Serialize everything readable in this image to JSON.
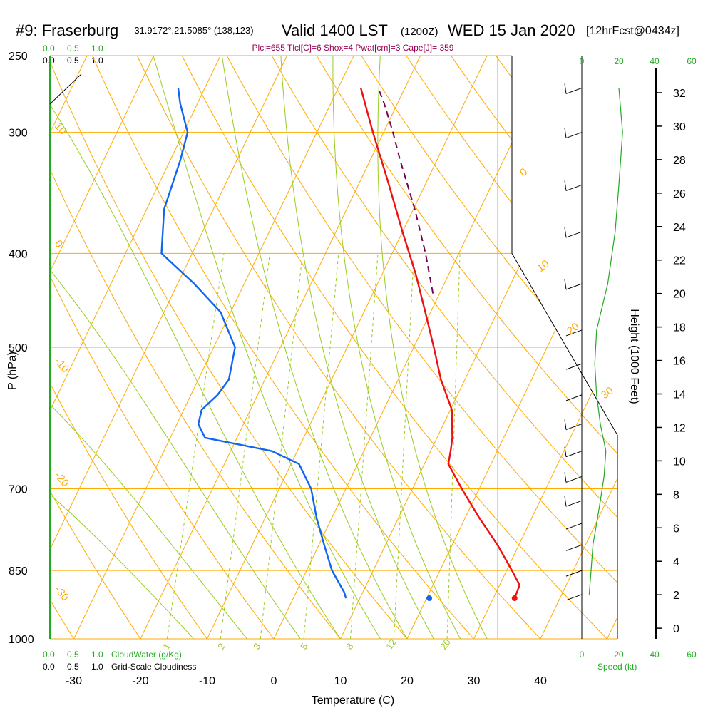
{
  "title": {
    "station": "#9: Fraserburg",
    "coords": "-31.9172°,21.5085° (138,123)",
    "valid": "Valid 1400 LST",
    "zulu": "(1200Z)",
    "date": "WED 15 Jan 2020",
    "forecast": "[12hrFcst@0434z]"
  },
  "indices": "Plcl=655 Tlcl[C]=6 Shox=4 Pwat[cm]=3 Cape[J]= 359",
  "colors": {
    "temperature": "#ee1111",
    "dewpoint": "#1166ee",
    "parcel": "#770055",
    "isobar": "#ffaa00",
    "dry_adiabat": "#ffaa00",
    "moist_adiabat": "#99cc22",
    "mixing_ratio": "#99cc22",
    "cloud_scale": "#22aa22",
    "indices_text": "#990055"
  },
  "legend": {
    "cloudwater_label": "CloudWater (g/Kg)",
    "cloudiness_label": "Grid-Scale Cloudiness",
    "speed_label": "Speed (kt)",
    "cloud_ticks": [
      "0.0",
      "0.5",
      "1.0"
    ]
  },
  "chart_data": {
    "type": "line",
    "xlabel": "Temperature (C)",
    "ylabel": "P (hPa)",
    "y2label": "Height (1000 Feet)",
    "x_ticks": [
      "-30",
      "-20",
      "-10",
      "0",
      "10",
      "20",
      "30",
      "40"
    ],
    "p_ticks": [
      "250",
      "300",
      "400",
      "500",
      "700",
      "850",
      "1000"
    ],
    "height_ticks": [
      "32",
      "30",
      "28",
      "26",
      "24",
      "22",
      "20",
      "18",
      "16",
      "14",
      "12",
      "10",
      "8",
      "6",
      "4",
      "2",
      "0"
    ],
    "speed_ticks": [
      "0",
      "20",
      "40",
      "60"
    ],
    "dry_adiabat_labels": [
      "0",
      "10",
      "20",
      "30"
    ],
    "skewed_isotherm_labels": [
      "10",
      "0",
      "-10",
      "-20",
      "-30"
    ],
    "mixing_ratio_labels": [
      "1",
      "2",
      "3",
      "5",
      "8",
      "12",
      "20"
    ],
    "series": [
      {
        "name": "Temperature",
        "pressure_hPa": [
          908,
          880,
          850,
          800,
          750,
          700,
          660,
          640,
          620,
          580,
          540,
          500,
          460,
          420,
          380,
          340,
          300,
          270
        ],
        "temp_C": [
          33.2,
          33.0,
          30.8,
          26.8,
          22.1,
          17.4,
          13.6,
          13.0,
          12.3,
          10.2,
          6.4,
          3.0,
          -0.8,
          -5.0,
          -10.0,
          -15.4,
          -21.6,
          -26.6
        ]
      },
      {
        "name": "Dewpoint",
        "pressure_hPa": [
          908,
          895,
          850,
          800,
          750,
          700,
          660,
          640,
          620,
          600,
          580,
          560,
          540,
          500,
          460,
          430,
          400,
          360,
          320,
          300,
          280,
          270
        ],
        "temp_C": [
          7.9,
          7.2,
          3.8,
          0.8,
          -2.3,
          -5.2,
          -8.8,
          -13.8,
          -24.8,
          -26.8,
          -27.3,
          -26.0,
          -25.4,
          -26.8,
          -31.5,
          -37.5,
          -44.6,
          -47.4,
          -48.5,
          -49.4,
          -52.6,
          -54.0
        ]
      },
      {
        "name": "Parcel",
        "pressure_hPa": [
          440,
          400,
          360,
          320,
          300,
          280,
          270
        ],
        "temp_C": [
          -1.0,
          -5.0,
          -9.8,
          -15.6,
          -18.6,
          -22.0,
          -24.0
        ]
      }
    ],
    "surface_points": {
      "temp_C": 33.2,
      "dewpoint_C": 7.9,
      "pressure_hPa": 908
    },
    "wind_speed_kt": [
      {
        "pressure_hPa": 270,
        "speed": 20
      },
      {
        "pressure_hPa": 300,
        "speed": 22
      },
      {
        "pressure_hPa": 340,
        "speed": 20
      },
      {
        "pressure_hPa": 380,
        "speed": 18
      },
      {
        "pressure_hPa": 430,
        "speed": 14
      },
      {
        "pressure_hPa": 480,
        "speed": 8
      },
      {
        "pressure_hPa": 520,
        "speed": 7
      },
      {
        "pressure_hPa": 560,
        "speed": 8
      },
      {
        "pressure_hPa": 600,
        "speed": 10
      },
      {
        "pressure_hPa": 640,
        "speed": 13
      },
      {
        "pressure_hPa": 680,
        "speed": 12
      },
      {
        "pressure_hPa": 720,
        "speed": 10
      },
      {
        "pressure_hPa": 760,
        "speed": 8
      },
      {
        "pressure_hPa": 800,
        "speed": 6
      },
      {
        "pressure_hPa": 850,
        "speed": 5
      },
      {
        "pressure_hPa": 900,
        "speed": 4
      }
    ]
  }
}
